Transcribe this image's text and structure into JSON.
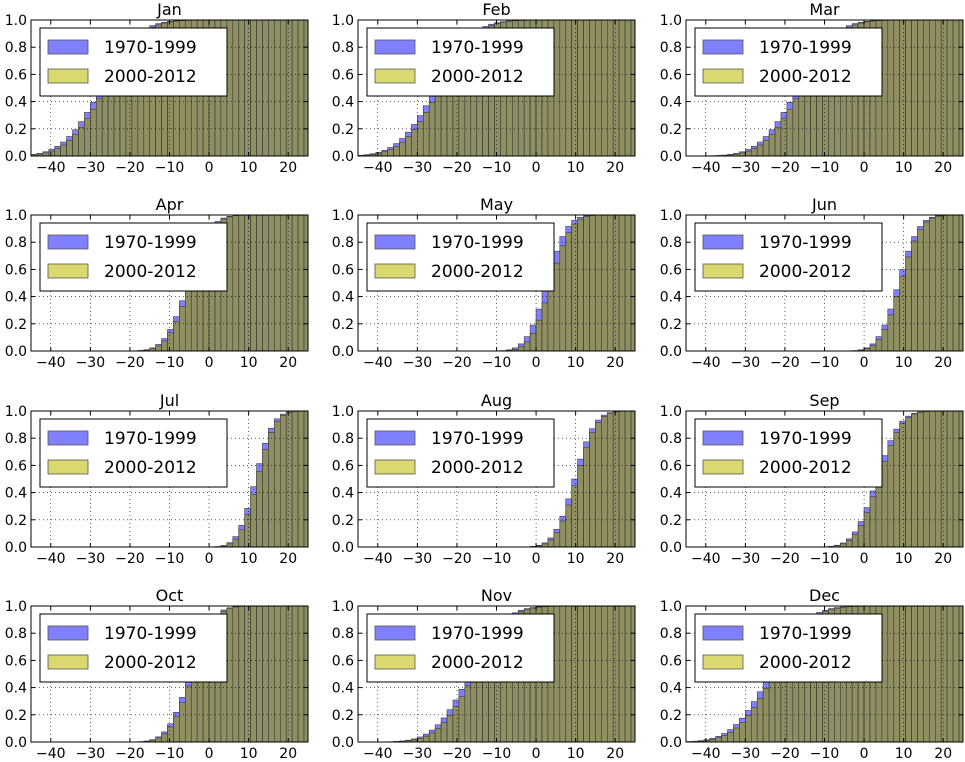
{
  "colors": {
    "series_a": "#8080ff",
    "series_b": "#d9d96f",
    "overlap": "#8f8f62",
    "edge": "#3a3a3a"
  },
  "chart_data": {
    "type": "bar",
    "histtype": "cumulative",
    "xlim": [
      -45,
      25
    ],
    "ylim": [
      0,
      1
    ],
    "xticks": [
      -40,
      -30,
      -20,
      -10,
      0,
      10,
      20
    ],
    "yticks": [
      0.0,
      0.2,
      0.4,
      0.6,
      0.8,
      1.0
    ],
    "ytick_labels": [
      "0.0",
      "0.2",
      "0.4",
      "0.6",
      "0.8",
      "1.0"
    ],
    "grid": true,
    "legend_position": "upper-left",
    "bin_width": 1.5,
    "series_names": [
      "1970-1999",
      "2000-2012"
    ],
    "panels": [
      {
        "title": "Jan",
        "cdf": {
          "a": {
            "mean": -26.5,
            "sd": 7.5
          },
          "b": {
            "mean": -25.5,
            "sd": 7.5
          }
        }
      },
      {
        "title": "Feb",
        "cdf": {
          "a": {
            "mean": -24.5,
            "sd": 7.5
          },
          "b": {
            "mean": -23.5,
            "sd": 7.5
          }
        }
      },
      {
        "title": "Mar",
        "cdf": {
          "a": {
            "mean": -16.0,
            "sd": 7.5
          },
          "b": {
            "mean": -15.0,
            "sd": 7.5
          }
        }
      },
      {
        "title": "Apr",
        "cdf": {
          "a": {
            "mean": -4.5,
            "sd": 4.5
          },
          "b": {
            "mean": -4.0,
            "sd": 4.5
          }
        }
      },
      {
        "title": "May",
        "cdf": {
          "a": {
            "mean": 3.5,
            "sd": 4.0
          },
          "b": {
            "mean": 4.5,
            "sd": 4.0
          }
        }
      },
      {
        "title": "Jun",
        "cdf": {
          "a": {
            "mean": 9.5,
            "sd": 4.0
          },
          "b": {
            "mean": 10.0,
            "sd": 4.0
          }
        }
      },
      {
        "title": "Jul",
        "cdf": {
          "a": {
            "mean": 12.5,
            "sd": 3.5
          },
          "b": {
            "mean": 13.0,
            "sd": 3.5
          }
        }
      },
      {
        "title": "Aug",
        "cdf": {
          "a": {
            "mean": 10.5,
            "sd": 4.0
          },
          "b": {
            "mean": 11.0,
            "sd": 4.0
          }
        }
      },
      {
        "title": "Sep",
        "cdf": {
          "a": {
            "mean": 4.0,
            "sd": 4.5
          },
          "b": {
            "mean": 4.5,
            "sd": 4.5
          }
        }
      },
      {
        "title": "Oct",
        "cdf": {
          "a": {
            "mean": -4.0,
            "sd": 4.5
          },
          "b": {
            "mean": -3.5,
            "sd": 4.5
          }
        }
      },
      {
        "title": "Nov",
        "cdf": {
          "a": {
            "mean": -16.0,
            "sd": 7.0
          },
          "b": {
            "mean": -15.0,
            "sd": 7.0
          }
        }
      },
      {
        "title": "Dec",
        "cdf": {
          "a": {
            "mean": -23.0,
            "sd": 7.5
          },
          "b": {
            "mean": -22.0,
            "sd": 7.5
          }
        }
      }
    ]
  }
}
